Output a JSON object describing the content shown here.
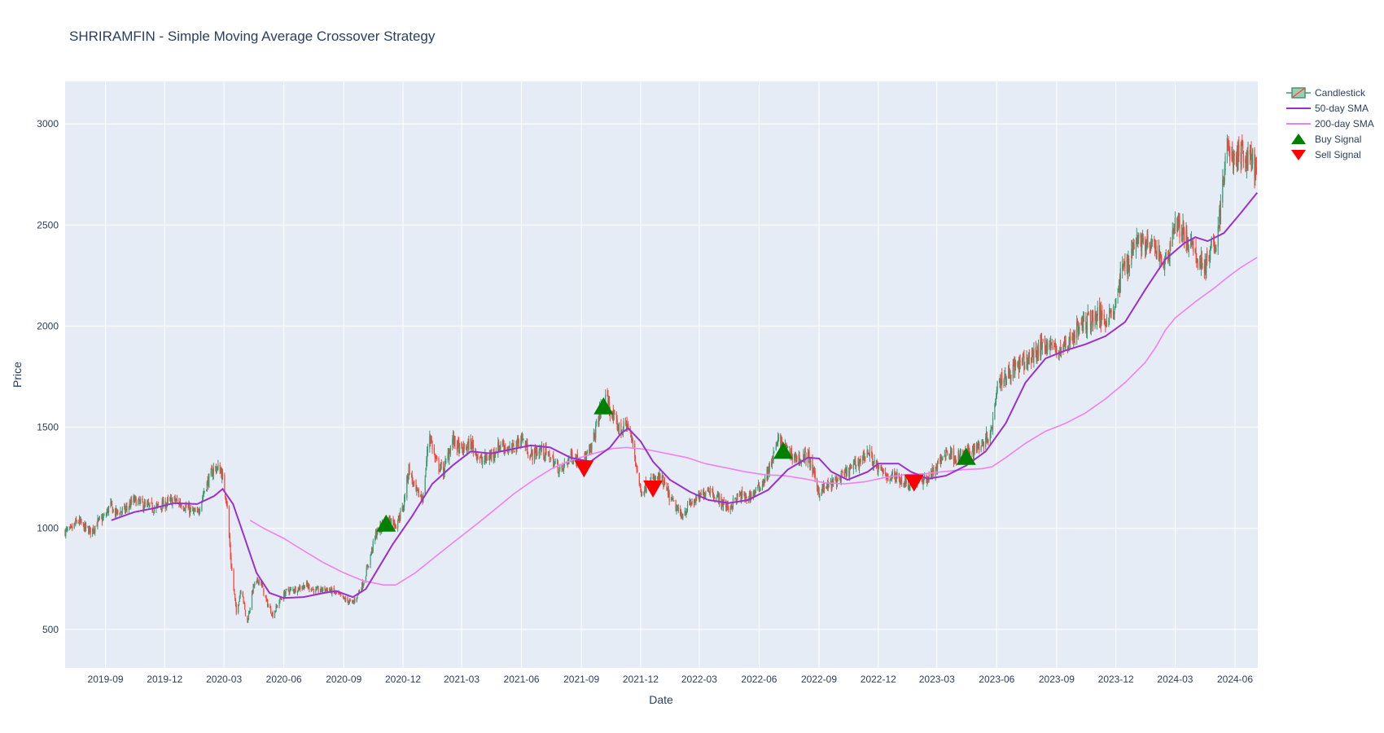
{
  "chart_data": {
    "type": "candlestick",
    "title": "SHRIRAMFIN - Simple Moving Average Crossover Strategy",
    "xlabel": "Date",
    "ylabel": "Price",
    "x_range": [
      "2019-07-01",
      "2024-07-06"
    ],
    "ylim": [
      310,
      3210
    ],
    "y_ticks": [
      500,
      1000,
      1500,
      2000,
      2500,
      3000
    ],
    "x_ticks": [
      {
        "date": "2019-09-01",
        "label": "2019-09"
      },
      {
        "date": "2019-12-01",
        "label": "2019-12"
      },
      {
        "date": "2020-03-01",
        "label": "2020-03"
      },
      {
        "date": "2020-06-01",
        "label": "2020-06"
      },
      {
        "date": "2020-09-01",
        "label": "2020-09"
      },
      {
        "date": "2020-12-01",
        "label": "2020-12"
      },
      {
        "date": "2021-03-01",
        "label": "2021-03"
      },
      {
        "date": "2021-06-01",
        "label": "2021-06"
      },
      {
        "date": "2021-09-01",
        "label": "2021-09"
      },
      {
        "date": "2021-12-01",
        "label": "2021-12"
      },
      {
        "date": "2022-03-01",
        "label": "2022-03"
      },
      {
        "date": "2022-06-01",
        "label": "2022-06"
      },
      {
        "date": "2022-09-01",
        "label": "2022-09"
      },
      {
        "date": "2022-12-01",
        "label": "2022-12"
      },
      {
        "date": "2023-03-01",
        "label": "2023-03"
      },
      {
        "date": "2023-06-01",
        "label": "2023-06"
      },
      {
        "date": "2023-09-01",
        "label": "2023-09"
      },
      {
        "date": "2023-12-01",
        "label": "2023-12"
      },
      {
        "date": "2024-03-01",
        "label": "2024-03"
      },
      {
        "date": "2024-06-01",
        "label": "2024-06"
      }
    ],
    "grid": true,
    "legend_position": "top-right",
    "colors": {
      "background": "#e5ecf6",
      "increasing": "#3d9970",
      "decreasing": "#ff4136",
      "sma50": "#9932cc",
      "sma200": "#ee82ee",
      "buy": "#008000",
      "sell": "#ff0000"
    },
    "legend": [
      {
        "name": "Candlestick",
        "kind": "candle"
      },
      {
        "name": "50-day SMA",
        "kind": "sma50"
      },
      {
        "name": "200-day SMA",
        "kind": "sma200"
      },
      {
        "name": "Buy Signal",
        "kind": "buy"
      },
      {
        "name": "Sell Signal",
        "kind": "sell"
      }
    ],
    "close_series": [
      [
        "2019-07-01",
        985
      ],
      [
        "2019-07-10",
        990
      ],
      [
        "2019-07-20",
        1040
      ],
      [
        "2019-08-01",
        1000
      ],
      [
        "2019-08-10",
        985
      ],
      [
        "2019-08-20",
        1030
      ],
      [
        "2019-09-01",
        1060
      ],
      [
        "2019-09-08",
        1120
      ],
      [
        "2019-09-15",
        1075
      ],
      [
        "2019-10-01",
        1090
      ],
      [
        "2019-10-15",
        1140
      ],
      [
        "2019-11-01",
        1110
      ],
      [
        "2019-11-15",
        1100
      ],
      [
        "2019-12-01",
        1120
      ],
      [
        "2019-12-15",
        1140
      ],
      [
        "2020-01-01",
        1110
      ],
      [
        "2020-01-10",
        1085
      ],
      [
        "2020-01-20",
        1070
      ],
      [
        "2020-02-01",
        1200
      ],
      [
        "2020-02-15",
        1300
      ],
      [
        "2020-02-25",
        1290
      ],
      [
        "2020-03-05",
        1140
      ],
      [
        "2020-03-12",
        820
      ],
      [
        "2020-03-20",
        580
      ],
      [
        "2020-03-28",
        720
      ],
      [
        "2020-04-05",
        520
      ],
      [
        "2020-04-15",
        710
      ],
      [
        "2020-04-25",
        750
      ],
      [
        "2020-05-05",
        640
      ],
      [
        "2020-05-15",
        570
      ],
      [
        "2020-05-25",
        640
      ],
      [
        "2020-06-05",
        690
      ],
      [
        "2020-06-20",
        700
      ],
      [
        "2020-07-05",
        720
      ],
      [
        "2020-07-20",
        690
      ],
      [
        "2020-08-05",
        700
      ],
      [
        "2020-08-20",
        680
      ],
      [
        "2020-09-01",
        650
      ],
      [
        "2020-09-15",
        630
      ],
      [
        "2020-10-01",
        730
      ],
      [
        "2020-10-10",
        840
      ],
      [
        "2020-10-20",
        970
      ],
      [
        "2020-11-01",
        1020
      ],
      [
        "2020-11-10",
        1050
      ],
      [
        "2020-11-20",
        1020
      ],
      [
        "2020-12-01",
        1100
      ],
      [
        "2020-12-10",
        1300
      ],
      [
        "2020-12-20",
        1180
      ],
      [
        "2021-01-01",
        1150
      ],
      [
        "2021-01-10",
        1480
      ],
      [
        "2021-01-20",
        1330
      ],
      [
        "2021-02-01",
        1280
      ],
      [
        "2021-02-15",
        1440
      ],
      [
        "2021-03-01",
        1380
      ],
      [
        "2021-03-15",
        1420
      ],
      [
        "2021-04-01",
        1330
      ],
      [
        "2021-04-15",
        1360
      ],
      [
        "2021-05-01",
        1420
      ],
      [
        "2021-05-15",
        1380
      ],
      [
        "2021-06-01",
        1450
      ],
      [
        "2021-06-15",
        1360
      ],
      [
        "2021-07-01",
        1390
      ],
      [
        "2021-07-15",
        1350
      ],
      [
        "2021-08-01",
        1280
      ],
      [
        "2021-08-15",
        1360
      ],
      [
        "2021-09-01",
        1330
      ],
      [
        "2021-09-15",
        1380
      ],
      [
        "2021-10-01",
        1600
      ],
      [
        "2021-10-10",
        1640
      ],
      [
        "2021-10-20",
        1540
      ],
      [
        "2021-11-01",
        1480
      ],
      [
        "2021-11-10",
        1520
      ],
      [
        "2021-11-20",
        1400
      ],
      [
        "2021-12-01",
        1180
      ],
      [
        "2021-12-15",
        1230
      ],
      [
        "2022-01-01",
        1250
      ],
      [
        "2022-01-15",
        1150
      ],
      [
        "2022-02-01",
        1060
      ],
      [
        "2022-02-15",
        1120
      ],
      [
        "2022-03-01",
        1150
      ],
      [
        "2022-03-15",
        1200
      ],
      [
        "2022-04-01",
        1140
      ],
      [
        "2022-04-15",
        1100
      ],
      [
        "2022-05-01",
        1160
      ],
      [
        "2022-05-15",
        1150
      ],
      [
        "2022-06-01",
        1200
      ],
      [
        "2022-06-15",
        1280
      ],
      [
        "2022-07-01",
        1440
      ],
      [
        "2022-07-15",
        1380
      ],
      [
        "2022-08-01",
        1340
      ],
      [
        "2022-08-15",
        1360
      ],
      [
        "2022-09-01",
        1180
      ],
      [
        "2022-09-15",
        1210
      ],
      [
        "2022-10-01",
        1240
      ],
      [
        "2022-10-15",
        1280
      ],
      [
        "2022-11-01",
        1330
      ],
      [
        "2022-11-15",
        1380
      ],
      [
        "2022-12-01",
        1290
      ],
      [
        "2022-12-15",
        1260
      ],
      [
        "2023-01-01",
        1250
      ],
      [
        "2023-01-15",
        1220
      ],
      [
        "2023-02-01",
        1230
      ],
      [
        "2023-02-15",
        1250
      ],
      [
        "2023-03-01",
        1300
      ],
      [
        "2023-03-15",
        1380
      ],
      [
        "2023-04-01",
        1350
      ],
      [
        "2023-04-15",
        1370
      ],
      [
        "2023-05-01",
        1400
      ],
      [
        "2023-05-15",
        1440
      ],
      [
        "2023-05-25",
        1500
      ],
      [
        "2023-06-01",
        1720
      ],
      [
        "2023-06-15",
        1760
      ],
      [
        "2023-07-01",
        1800
      ],
      [
        "2023-07-15",
        1820
      ],
      [
        "2023-08-01",
        1870
      ],
      [
        "2023-08-15",
        1920
      ],
      [
        "2023-09-01",
        1880
      ],
      [
        "2023-09-15",
        1900
      ],
      [
        "2023-10-01",
        1980
      ],
      [
        "2023-10-15",
        2020
      ],
      [
        "2023-11-01",
        2050
      ],
      [
        "2023-11-15",
        2040
      ],
      [
        "2023-12-01",
        2100
      ],
      [
        "2023-12-10",
        2280
      ],
      [
        "2023-12-20",
        2320
      ],
      [
        "2024-01-01",
        2440
      ],
      [
        "2024-01-15",
        2400
      ],
      [
        "2024-02-01",
        2380
      ],
      [
        "2024-02-15",
        2300
      ],
      [
        "2024-03-01",
        2520
      ],
      [
        "2024-03-15",
        2450
      ],
      [
        "2024-04-01",
        2350
      ],
      [
        "2024-04-15",
        2300
      ],
      [
        "2024-05-01",
        2400
      ],
      [
        "2024-05-10",
        2580
      ],
      [
        "2024-05-20",
        2900
      ],
      [
        "2024-06-01",
        2800
      ],
      [
        "2024-06-10",
        2860
      ],
      [
        "2024-06-20",
        2820
      ],
      [
        "2024-06-28",
        2850
      ],
      [
        "2024-07-05",
        2700
      ]
    ],
    "sma50": [
      [
        "2019-09-10",
        1040
      ],
      [
        "2019-10-15",
        1080
      ],
      [
        "2019-11-15",
        1100
      ],
      [
        "2019-12-15",
        1125
      ],
      [
        "2020-01-20",
        1120
      ],
      [
        "2020-02-15",
        1160
      ],
      [
        "2020-02-28",
        1195
      ],
      [
        "2020-03-15",
        1120
      ],
      [
        "2020-04-01",
        960
      ],
      [
        "2020-04-20",
        780
      ],
      [
        "2020-05-10",
        680
      ],
      [
        "2020-06-01",
        655
      ],
      [
        "2020-07-01",
        660
      ],
      [
        "2020-08-01",
        680
      ],
      [
        "2020-08-20",
        690
      ],
      [
        "2020-09-15",
        660
      ],
      [
        "2020-10-05",
        700
      ],
      [
        "2020-10-20",
        780
      ],
      [
        "2020-11-15",
        920
      ],
      [
        "2020-12-15",
        1060
      ],
      [
        "2021-01-15",
        1220
      ],
      [
        "2021-02-15",
        1310
      ],
      [
        "2021-03-15",
        1380
      ],
      [
        "2021-04-15",
        1370
      ],
      [
        "2021-05-15",
        1390
      ],
      [
        "2021-06-15",
        1410
      ],
      [
        "2021-07-15",
        1400
      ],
      [
        "2021-08-15",
        1350
      ],
      [
        "2021-09-15",
        1330
      ],
      [
        "2021-10-15",
        1400
      ],
      [
        "2021-11-01",
        1470
      ],
      [
        "2021-11-12",
        1495
      ],
      [
        "2021-12-01",
        1430
      ],
      [
        "2021-12-20",
        1330
      ],
      [
        "2022-01-15",
        1240
      ],
      [
        "2022-02-15",
        1180
      ],
      [
        "2022-03-15",
        1140
      ],
      [
        "2022-04-15",
        1125
      ],
      [
        "2022-05-15",
        1140
      ],
      [
        "2022-06-15",
        1190
      ],
      [
        "2022-07-15",
        1290
      ],
      [
        "2022-08-15",
        1350
      ],
      [
        "2022-09-01",
        1345
      ],
      [
        "2022-09-20",
        1280
      ],
      [
        "2022-10-15",
        1240
      ],
      [
        "2022-11-15",
        1280
      ],
      [
        "2022-12-01",
        1320
      ],
      [
        "2023-01-01",
        1320
      ],
      [
        "2023-01-20",
        1280
      ],
      [
        "2023-02-15",
        1245
      ],
      [
        "2023-03-15",
        1260
      ],
      [
        "2023-04-15",
        1310
      ],
      [
        "2023-05-15",
        1380
      ],
      [
        "2023-06-15",
        1520
      ],
      [
        "2023-07-15",
        1720
      ],
      [
        "2023-08-15",
        1840
      ],
      [
        "2023-09-15",
        1880
      ],
      [
        "2023-10-15",
        1910
      ],
      [
        "2023-11-15",
        1950
      ],
      [
        "2023-12-15",
        2020
      ],
      [
        "2024-01-15",
        2180
      ],
      [
        "2024-02-15",
        2330
      ],
      [
        "2024-03-15",
        2410
      ],
      [
        "2024-04-01",
        2440
      ],
      [
        "2024-04-20",
        2420
      ],
      [
        "2024-05-15",
        2460
      ],
      [
        "2024-06-10",
        2560
      ],
      [
        "2024-07-05",
        2660
      ]
    ],
    "sma200": [
      [
        "2020-04-10",
        1040
      ],
      [
        "2020-05-01",
        1000
      ],
      [
        "2020-06-01",
        950
      ],
      [
        "2020-07-01",
        890
      ],
      [
        "2020-08-01",
        830
      ],
      [
        "2020-09-01",
        780
      ],
      [
        "2020-10-01",
        740
      ],
      [
        "2020-11-01",
        720
      ],
      [
        "2020-11-20",
        720
      ],
      [
        "2020-12-20",
        780
      ],
      [
        "2021-01-20",
        860
      ],
      [
        "2021-02-20",
        940
      ],
      [
        "2021-03-20",
        1010
      ],
      [
        "2021-04-20",
        1090
      ],
      [
        "2021-05-20",
        1170
      ],
      [
        "2021-06-20",
        1240
      ],
      [
        "2021-07-20",
        1300
      ],
      [
        "2021-08-20",
        1340
      ],
      [
        "2021-09-20",
        1370
      ],
      [
        "2021-10-20",
        1395
      ],
      [
        "2021-11-10",
        1400
      ],
      [
        "2021-12-10",
        1390
      ],
      [
        "2022-01-10",
        1370
      ],
      [
        "2022-02-10",
        1350
      ],
      [
        "2022-03-10",
        1320
      ],
      [
        "2022-04-10",
        1300
      ],
      [
        "2022-05-10",
        1280
      ],
      [
        "2022-06-10",
        1265
      ],
      [
        "2022-07-10",
        1260
      ],
      [
        "2022-08-10",
        1245
      ],
      [
        "2022-09-10",
        1225
      ],
      [
        "2022-10-10",
        1220
      ],
      [
        "2022-11-10",
        1230
      ],
      [
        "2022-12-10",
        1250
      ],
      [
        "2023-01-10",
        1265
      ],
      [
        "2023-02-10",
        1270
      ],
      [
        "2023-03-10",
        1280
      ],
      [
        "2023-04-10",
        1290
      ],
      [
        "2023-05-10",
        1295
      ],
      [
        "2023-05-25",
        1305
      ],
      [
        "2023-06-15",
        1350
      ],
      [
        "2023-07-15",
        1420
      ],
      [
        "2023-08-15",
        1480
      ],
      [
        "2023-09-15",
        1520
      ],
      [
        "2023-10-15",
        1570
      ],
      [
        "2023-11-15",
        1640
      ],
      [
        "2023-12-15",
        1720
      ],
      [
        "2024-01-15",
        1820
      ],
      [
        "2024-02-01",
        1900
      ],
      [
        "2024-02-15",
        1980
      ],
      [
        "2024-03-01",
        2040
      ],
      [
        "2024-04-01",
        2120
      ],
      [
        "2024-05-01",
        2190
      ],
      [
        "2024-05-20",
        2240
      ],
      [
        "2024-06-10",
        2290
      ],
      [
        "2024-07-05",
        2340
      ]
    ],
    "buy_signals": [
      [
        "2020-11-05",
        1020
      ],
      [
        "2021-10-05",
        1600
      ],
      [
        "2022-07-08",
        1380
      ],
      [
        "2023-04-15",
        1350
      ]
    ],
    "sell_signals": [
      [
        "2021-09-05",
        1300
      ],
      [
        "2021-12-20",
        1200
      ],
      [
        "2023-01-25",
        1230
      ]
    ]
  }
}
